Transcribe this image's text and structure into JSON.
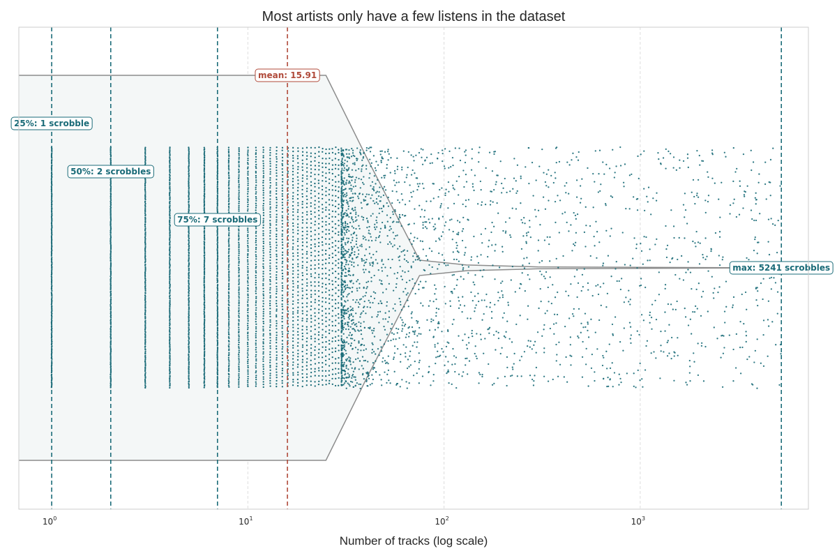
{
  "chart_data": {
    "type": "scatter",
    "title": "Most artists only have a few listens in the dataset",
    "xlabel": "Number of tracks (log scale)",
    "ylabel": "",
    "x_scale": "log",
    "xlim": [
      0.68,
      7200
    ],
    "x_ticks": [
      {
        "value": 1,
        "base": "10",
        "exp": "0"
      },
      {
        "value": 10,
        "base": "10",
        "exp": "1"
      },
      {
        "value": 100,
        "base": "10",
        "exp": "2"
      },
      {
        "value": 1000,
        "base": "10",
        "exp": "3"
      }
    ],
    "grid": "vertical dashed",
    "colors": {
      "points": "#1a6b78",
      "quartile_lines": "#1a6b78",
      "mean_line": "#b04a3a",
      "density_outline": "#8c8c8c",
      "density_fill": "#f4f7f7"
    },
    "discrete_stacks": [
      1,
      2,
      3,
      4,
      5,
      6,
      7,
      8,
      9,
      10,
      11,
      12,
      13,
      14,
      15,
      16,
      17,
      18,
      19,
      20,
      21,
      22,
      23,
      24,
      25,
      26,
      27,
      28,
      29,
      30
    ],
    "scatter_range": [
      30,
      5241
    ],
    "reference_lines": [
      {
        "name": "25%",
        "value": 1,
        "label": "25%: 1 scrobble",
        "color": "#1a6b78"
      },
      {
        "name": "50%",
        "value": 2,
        "label": "50%: 2 scrobbles",
        "color": "#1a6b78"
      },
      {
        "name": "75%",
        "value": 7,
        "label": "75%: 7 scrobbles",
        "color": "#1a6b78"
      },
      {
        "name": "mean",
        "value": 15.91,
        "label": "mean: 15.91",
        "color": "#b04a3a"
      },
      {
        "name": "max",
        "value": 5241,
        "label": "max: 5241 scrobbles",
        "color": "#1a6b78"
      }
    ],
    "density_outline": [
      {
        "x": 0.68,
        "half_width": 1.0
      },
      {
        "x": 25,
        "half_width": 1.0
      },
      {
        "x": 40,
        "half_width": 0.58
      },
      {
        "x": 75,
        "half_width": 0.04
      },
      {
        "x": 130,
        "half_width": 0.015
      },
      {
        "x": 300,
        "half_width": 0.005
      },
      {
        "x": 5241,
        "half_width": 0.0
      }
    ]
  }
}
